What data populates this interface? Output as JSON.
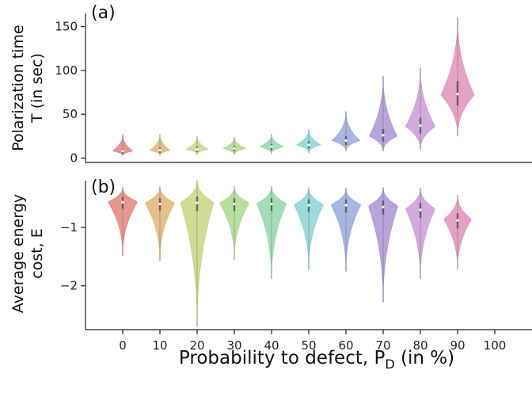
{
  "x_axis": {
    "label": "Probability to defect, P",
    "label_sub": "D",
    "label_suffix": " (in %)"
  },
  "chart_data": [
    {
      "type": "violin",
      "panel_label": "(a)",
      "ylabel_lines": [
        "Polarization time",
        "T (in sec)"
      ],
      "categories": [
        0,
        10,
        20,
        30,
        40,
        50,
        60,
        70,
        80,
        90,
        100
      ],
      "xlim": [
        -10,
        110
      ],
      "ylim": [
        -5,
        165
      ],
      "yticks": [
        0,
        50,
        100,
        150
      ],
      "series": [
        {
          "x": 0,
          "median": 8,
          "q1": 5,
          "q3": 10,
          "min": 3,
          "max": 27,
          "mode": 8,
          "width": 0.55,
          "color": "#e07a72"
        },
        {
          "x": 10,
          "median": 9,
          "q1": 6,
          "q3": 12,
          "min": 3,
          "max": 27,
          "mode": 9,
          "width": 0.55,
          "color": "#dcae6e"
        },
        {
          "x": 20,
          "median": 10,
          "q1": 7,
          "q3": 13,
          "min": 4,
          "max": 25,
          "mode": 10,
          "width": 0.6,
          "color": "#c3d178"
        },
        {
          "x": 30,
          "median": 11,
          "q1": 8,
          "q3": 14,
          "min": 4,
          "max": 24,
          "mode": 11,
          "width": 0.6,
          "color": "#a3d683"
        },
        {
          "x": 40,
          "median": 13,
          "q1": 9,
          "q3": 16,
          "min": 5,
          "max": 27,
          "mode": 13,
          "width": 0.65,
          "color": "#88d3a1"
        },
        {
          "x": 50,
          "median": 15,
          "q1": 11,
          "q3": 19,
          "min": 6,
          "max": 33,
          "mode": 15,
          "width": 0.65,
          "color": "#80cfd1"
        },
        {
          "x": 60,
          "median": 20,
          "q1": 15,
          "q3": 25,
          "min": 8,
          "max": 53,
          "mode": 20,
          "width": 0.75,
          "color": "#8fa3d9"
        },
        {
          "x": 70,
          "median": 26,
          "q1": 19,
          "q3": 33,
          "min": 8,
          "max": 93,
          "mode": 25,
          "width": 0.75,
          "color": "#a28ad1"
        },
        {
          "x": 80,
          "median": 37,
          "q1": 28,
          "q3": 46,
          "min": 10,
          "max": 103,
          "mode": 36,
          "width": 0.8,
          "color": "#c592d3"
        },
        {
          "x": 90,
          "median": 73,
          "q1": 60,
          "q3": 88,
          "min": 25,
          "max": 160,
          "mode": 72,
          "width": 0.9,
          "color": "#de88b3"
        }
      ]
    },
    {
      "type": "violin",
      "panel_label": "(b)",
      "ylabel_lines": [
        "Average energy",
        "cost, E"
      ],
      "categories": [
        0,
        10,
        20,
        30,
        40,
        50,
        60,
        70,
        80,
        90,
        100
      ],
      "xlim": [
        -10,
        110
      ],
      "ylim": [
        -2.75,
        -0.2
      ],
      "yticks": [
        -2,
        -1
      ],
      "series": [
        {
          "x": 0,
          "median": -0.57,
          "q1": -0.68,
          "q3": -0.48,
          "min": -1.48,
          "max": -0.32,
          "mode": -0.56,
          "width": 0.8,
          "color": "#e07a72"
        },
        {
          "x": 10,
          "median": -0.6,
          "q1": -0.72,
          "q3": -0.5,
          "min": -1.57,
          "max": -0.3,
          "mode": -0.58,
          "width": 0.8,
          "color": "#dcae6e"
        },
        {
          "x": 20,
          "median": -0.58,
          "q1": -0.72,
          "q3": -0.47,
          "min": -2.7,
          "max": -0.2,
          "mode": -0.57,
          "width": 0.9,
          "color": "#c3d178"
        },
        {
          "x": 30,
          "median": -0.6,
          "q1": -0.72,
          "q3": -0.5,
          "min": -1.55,
          "max": -0.3,
          "mode": -0.58,
          "width": 0.8,
          "color": "#a3d683"
        },
        {
          "x": 40,
          "median": -0.6,
          "q1": -0.72,
          "q3": -0.5,
          "min": -1.88,
          "max": -0.3,
          "mode": -0.59,
          "width": 0.8,
          "color": "#88d3a1"
        },
        {
          "x": 50,
          "median": -0.62,
          "q1": -0.74,
          "q3": -0.52,
          "min": -1.72,
          "max": -0.32,
          "mode": -0.61,
          "width": 0.8,
          "color": "#80cfd1"
        },
        {
          "x": 60,
          "median": -0.62,
          "q1": -0.75,
          "q3": -0.52,
          "min": -1.75,
          "max": -0.33,
          "mode": -0.61,
          "width": 0.8,
          "color": "#8fa3d9"
        },
        {
          "x": 70,
          "median": -0.65,
          "q1": -0.78,
          "q3": -0.54,
          "min": -2.28,
          "max": -0.32,
          "mode": -0.63,
          "width": 0.8,
          "color": "#a28ad1"
        },
        {
          "x": 80,
          "median": -0.7,
          "q1": -0.84,
          "q3": -0.58,
          "min": -1.88,
          "max": -0.33,
          "mode": -0.68,
          "width": 0.8,
          "color": "#c592d3"
        },
        {
          "x": 90,
          "median": -0.88,
          "q1": -1.02,
          "q3": -0.76,
          "min": -1.72,
          "max": -0.45,
          "mode": -0.86,
          "width": 0.75,
          "color": "#de88b3"
        }
      ]
    }
  ]
}
